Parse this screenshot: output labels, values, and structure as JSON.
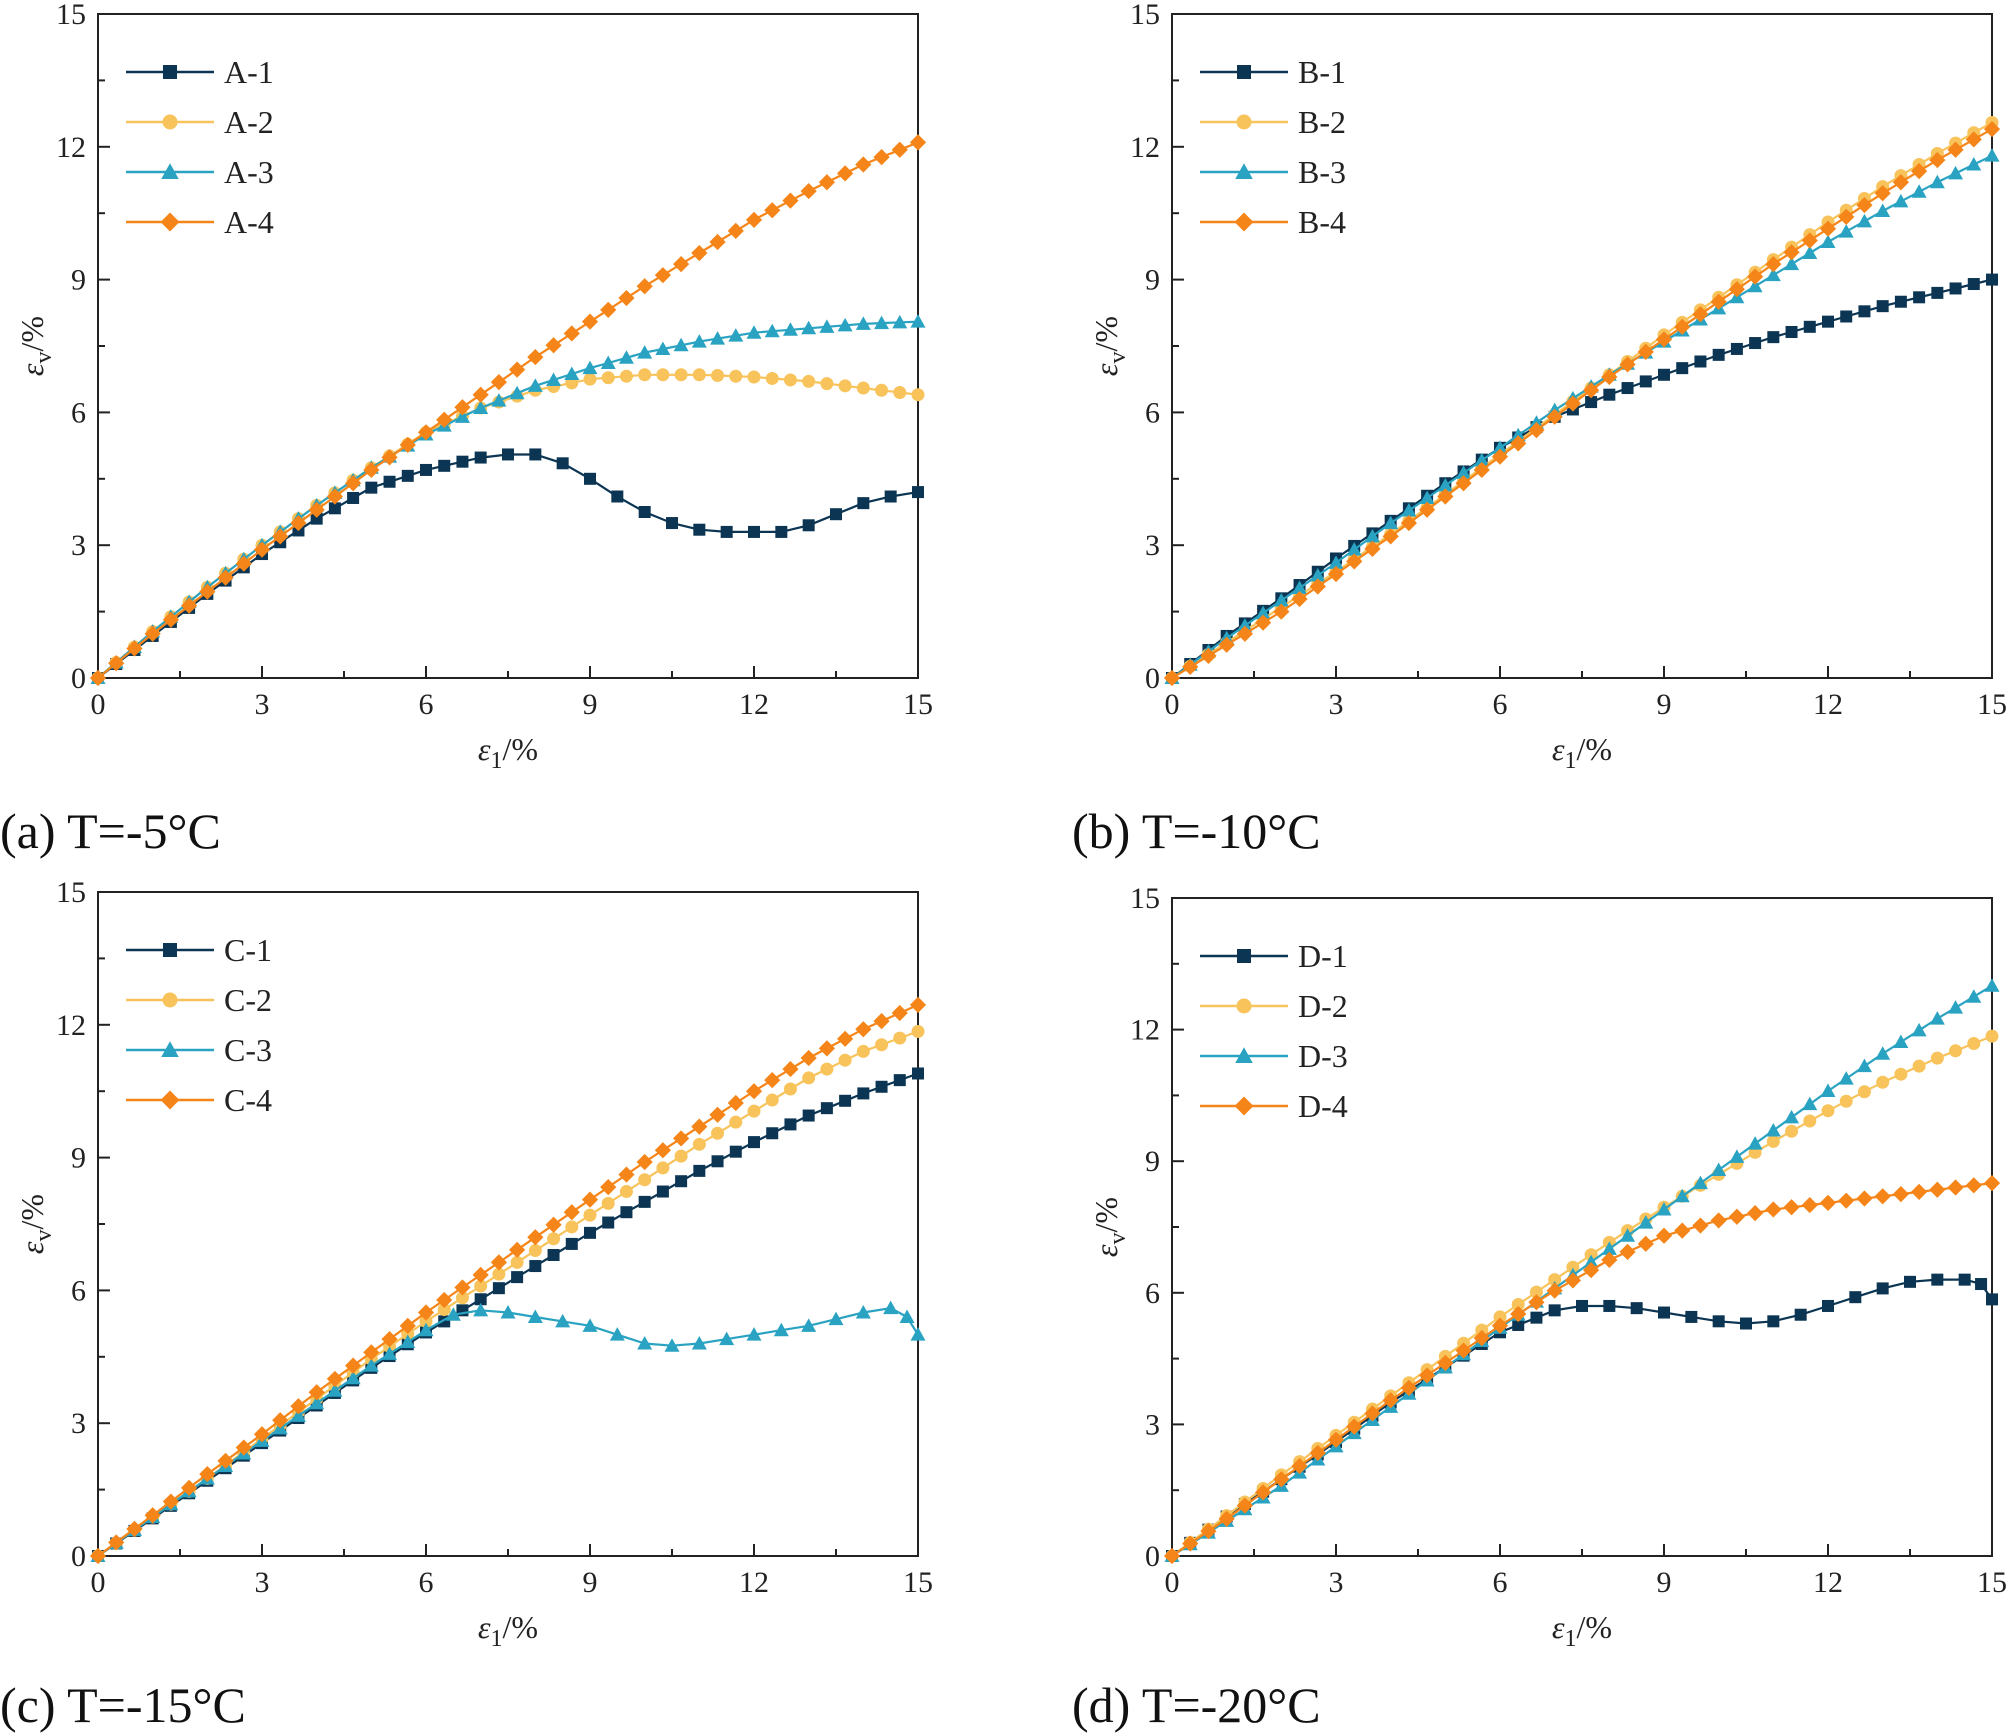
{
  "colors": {
    "s1": "#0b3552",
    "s2": "#f7c35a",
    "s3": "#2aa3c2",
    "s4": "#f58518",
    "axis": "#222222"
  },
  "chart_data": [
    {
      "type": "line",
      "caption": "(a) T=-5°C",
      "xlabel": "ε1/%",
      "ylabel": "εv/%",
      "xlim": [
        0,
        15
      ],
      "ylim": [
        0,
        15
      ],
      "xticks": [
        "0",
        "3",
        "6",
        "9",
        "12",
        "15"
      ],
      "yticks": [
        "0",
        "3",
        "6",
        "9",
        "12",
        "15"
      ],
      "legend_position": "top-left",
      "series": [
        {
          "name": "A-1",
          "marker": "square",
          "x": [
            0,
            1,
            2,
            3,
            4,
            5,
            6,
            7,
            7.5,
            8,
            8.5,
            9,
            9.5,
            10,
            10.5,
            11,
            11.5,
            12,
            12.5,
            13,
            13.5,
            14,
            14.5,
            15
          ],
          "y": [
            0,
            0.95,
            1.9,
            2.8,
            3.6,
            4.3,
            4.7,
            4.98,
            5.05,
            5.05,
            4.85,
            4.5,
            4.1,
            3.75,
            3.5,
            3.35,
            3.3,
            3.3,
            3.3,
            3.45,
            3.7,
            3.95,
            4.1,
            4.2
          ]
        },
        {
          "name": "A-2",
          "marker": "circle",
          "x": [
            0,
            1,
            2,
            3,
            4,
            5,
            6,
            7,
            8,
            9,
            10,
            11,
            12,
            13,
            14,
            15
          ],
          "y": [
            0,
            1.05,
            2.05,
            3.0,
            3.9,
            4.75,
            5.55,
            6.1,
            6.5,
            6.75,
            6.85,
            6.85,
            6.8,
            6.7,
            6.55,
            6.4
          ]
        },
        {
          "name": "A-3",
          "marker": "triangle",
          "x": [
            0,
            1,
            2,
            3,
            4,
            5,
            6,
            7,
            8,
            9,
            10,
            11,
            12,
            13,
            14,
            15
          ],
          "y": [
            0,
            1.05,
            2.05,
            3.0,
            3.9,
            4.75,
            5.5,
            6.1,
            6.6,
            7.0,
            7.35,
            7.6,
            7.8,
            7.9,
            8.0,
            8.05
          ]
        },
        {
          "name": "A-4",
          "marker": "diamond",
          "x": [
            0,
            1,
            2,
            3,
            4,
            5,
            6,
            7,
            8,
            9,
            10,
            11,
            12,
            13,
            14,
            15
          ],
          "y": [
            0,
            1.0,
            1.95,
            2.9,
            3.8,
            4.7,
            5.55,
            6.4,
            7.25,
            8.05,
            8.85,
            9.6,
            10.35,
            11.0,
            11.6,
            12.1
          ]
        }
      ]
    },
    {
      "type": "line",
      "caption": "(b) T=-10°C",
      "xlabel": "ε1/%",
      "ylabel": "εv/%",
      "xlim": [
        0,
        15
      ],
      "ylim": [
        0,
        15
      ],
      "xticks": [
        "0",
        "3",
        "6",
        "9",
        "12",
        "15"
      ],
      "yticks": [
        "0",
        "3",
        "6",
        "9",
        "12",
        "15"
      ],
      "legend_position": "top-left",
      "series": [
        {
          "name": "B-1",
          "marker": "square",
          "x": [
            0,
            1,
            2,
            3,
            4,
            5,
            6,
            7,
            8,
            9,
            10,
            11,
            12,
            13,
            14,
            15
          ],
          "y": [
            0,
            0.95,
            1.8,
            2.7,
            3.55,
            4.4,
            5.2,
            5.9,
            6.4,
            6.85,
            7.3,
            7.7,
            8.05,
            8.4,
            8.7,
            9.0
          ]
        },
        {
          "name": "B-2",
          "marker": "circle",
          "x": [
            0,
            1,
            2,
            3,
            4,
            5,
            6,
            7,
            8,
            9,
            10,
            11,
            12,
            13,
            14,
            15
          ],
          "y": [
            0,
            0.8,
            1.6,
            2.4,
            3.25,
            4.15,
            5.05,
            5.95,
            6.85,
            7.75,
            8.6,
            9.45,
            10.3,
            11.1,
            11.85,
            12.55
          ]
        },
        {
          "name": "B-3",
          "marker": "triangle",
          "x": [
            0,
            1,
            2,
            3,
            4,
            5,
            6,
            7,
            8,
            9,
            10,
            11,
            12,
            13,
            14,
            15
          ],
          "y": [
            0,
            0.9,
            1.75,
            2.6,
            3.5,
            4.35,
            5.2,
            6.05,
            6.85,
            7.6,
            8.35,
            9.1,
            9.85,
            10.55,
            11.2,
            11.8
          ]
        },
        {
          "name": "B-4",
          "marker": "diamond",
          "x": [
            0,
            1,
            2,
            3,
            4,
            5,
            6,
            7,
            8,
            9,
            10,
            11,
            12,
            13,
            14,
            15
          ],
          "y": [
            0,
            0.75,
            1.5,
            2.35,
            3.2,
            4.1,
            5.0,
            5.9,
            6.8,
            7.65,
            8.5,
            9.35,
            10.15,
            10.95,
            11.7,
            12.4
          ]
        }
      ]
    },
    {
      "type": "line",
      "caption": "(c) T=-15°C",
      "xlabel": "ε1/%",
      "ylabel": "εv/%",
      "xlim": [
        0,
        15
      ],
      "ylim": [
        0,
        15
      ],
      "xticks": [
        "0",
        "3",
        "6",
        "9",
        "12",
        "15"
      ],
      "yticks": [
        "0",
        "3",
        "6",
        "9",
        "12",
        "15"
      ],
      "legend_position": "top-left",
      "series": [
        {
          "name": "C-1",
          "marker": "square",
          "x": [
            0,
            1,
            2,
            3,
            4,
            5,
            6,
            7,
            8,
            9,
            10,
            11,
            12,
            13,
            14,
            15
          ],
          "y": [
            0,
            0.85,
            1.7,
            2.55,
            3.4,
            4.25,
            5.05,
            5.8,
            6.55,
            7.3,
            8.0,
            8.7,
            9.35,
            9.95,
            10.45,
            10.9
          ]
        },
        {
          "name": "C-2",
          "marker": "circle",
          "x": [
            0,
            1,
            2,
            3,
            4,
            5,
            6,
            7,
            8,
            9,
            10,
            11,
            12,
            13,
            14,
            15
          ],
          "y": [
            0,
            0.88,
            1.75,
            2.65,
            3.55,
            4.45,
            5.3,
            6.1,
            6.9,
            7.7,
            8.5,
            9.3,
            10.05,
            10.8,
            11.4,
            11.85
          ]
        },
        {
          "name": "C-3",
          "marker": "triangle",
          "x": [
            0,
            1,
            2,
            3,
            4,
            5,
            6,
            6.5,
            7,
            7.5,
            8,
            8.5,
            9,
            9.5,
            10,
            10.5,
            11,
            11.5,
            12,
            12.5,
            13,
            13.5,
            14,
            14.5,
            14.8,
            15
          ],
          "y": [
            0,
            0.88,
            1.75,
            2.6,
            3.45,
            4.3,
            5.1,
            5.45,
            5.55,
            5.5,
            5.4,
            5.3,
            5.2,
            5.0,
            4.8,
            4.75,
            4.8,
            4.9,
            5.0,
            5.1,
            5.2,
            5.35,
            5.5,
            5.6,
            5.4,
            5.0
          ]
        },
        {
          "name": "C-4",
          "marker": "diamond",
          "x": [
            0,
            1,
            2,
            3,
            4,
            5,
            6,
            7,
            8,
            9,
            10,
            11,
            12,
            13,
            14,
            15
          ],
          "y": [
            0,
            0.92,
            1.85,
            2.75,
            3.7,
            4.6,
            5.5,
            6.35,
            7.2,
            8.05,
            8.9,
            9.7,
            10.5,
            11.25,
            11.9,
            12.45
          ]
        }
      ]
    },
    {
      "type": "line",
      "caption": "(d) T=-20°C",
      "xlabel": "ε1/%",
      "ylabel": "εv/%",
      "xlim": [
        0,
        15
      ],
      "ylim": [
        0,
        15
      ],
      "xticks": [
        "0",
        "3",
        "6",
        "9",
        "12",
        "15"
      ],
      "yticks": [
        "0",
        "3",
        "6",
        "9",
        "12",
        "15"
      ],
      "legend_position": "top-left",
      "series": [
        {
          "name": "D-1",
          "marker": "square",
          "x": [
            0,
            1,
            2,
            3,
            4,
            5,
            6,
            7,
            7.5,
            8,
            8.5,
            9,
            9.5,
            10,
            10.5,
            11,
            11.5,
            12,
            12.5,
            13,
            13.5,
            14,
            14.5,
            14.8,
            15
          ],
          "y": [
            0,
            0.9,
            1.75,
            2.6,
            3.5,
            4.3,
            5.1,
            5.6,
            5.7,
            5.7,
            5.65,
            5.55,
            5.45,
            5.35,
            5.3,
            5.35,
            5.5,
            5.7,
            5.9,
            6.1,
            6.25,
            6.3,
            6.3,
            6.2,
            5.85
          ]
        },
        {
          "name": "D-2",
          "marker": "circle",
          "x": [
            0,
            1,
            2,
            3,
            4,
            5,
            6,
            7,
            8,
            9,
            10,
            11,
            12,
            13,
            14,
            15
          ],
          "y": [
            0,
            0.92,
            1.85,
            2.75,
            3.65,
            4.55,
            5.45,
            6.3,
            7.15,
            7.95,
            8.7,
            9.45,
            10.15,
            10.8,
            11.35,
            11.85
          ]
        },
        {
          "name": "D-3",
          "marker": "triangle",
          "x": [
            0,
            1,
            2,
            3,
            4,
            5,
            6,
            7,
            8,
            9,
            10,
            11,
            12,
            13,
            14,
            15
          ],
          "y": [
            0,
            0.8,
            1.6,
            2.5,
            3.4,
            4.3,
            5.2,
            6.1,
            7.0,
            7.9,
            8.8,
            9.7,
            10.6,
            11.45,
            12.25,
            13.0
          ]
        },
        {
          "name": "D-4",
          "marker": "diamond",
          "x": [
            0,
            1,
            2,
            3,
            4,
            5,
            6,
            7,
            8,
            9,
            10,
            11,
            12,
            13,
            14,
            15
          ],
          "y": [
            0,
            0.85,
            1.75,
            2.65,
            3.55,
            4.4,
            5.25,
            6.05,
            6.75,
            7.3,
            7.65,
            7.9,
            8.05,
            8.2,
            8.35,
            8.5
          ]
        }
      ]
    }
  ]
}
